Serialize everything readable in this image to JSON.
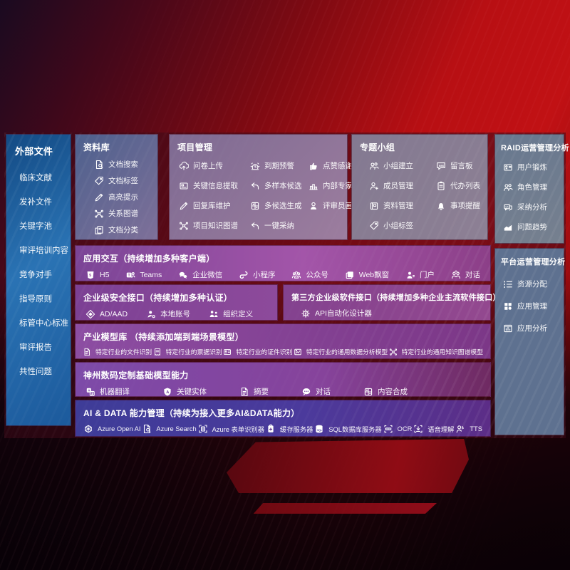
{
  "colors": {
    "background_red": "#b80f13",
    "sidebar_blue": "#1d63a9",
    "slate_panel": "#5e7190",
    "purple_row": "#8a4098",
    "indigo_row": "#4340a0",
    "gap_maroon": "#4a0c1a"
  },
  "sidebar": {
    "title": "外部文件",
    "items": [
      "临床文献",
      "发补文件",
      "关键字池",
      "审评培训内容",
      "竞争对手",
      "指导原则",
      "标管中心标准",
      "审评报告",
      "共性问题"
    ]
  },
  "panels": {
    "repository": {
      "title": "资料库",
      "items": [
        {
          "icon": "doc-search",
          "label": "文档搜索"
        },
        {
          "icon": "doc-tag",
          "label": "文档标签"
        },
        {
          "icon": "highlight-pen",
          "label": "高亮提示"
        },
        {
          "icon": "relation-graph",
          "label": "关系图谱"
        },
        {
          "icon": "doc-classify",
          "label": "文档分类"
        }
      ]
    },
    "project": {
      "title": "项目管理",
      "items": [
        {
          "icon": "cloud-upload",
          "label": "问卷上传"
        },
        {
          "icon": "due-alarm",
          "label": "到期预警"
        },
        {
          "icon": "thumbs-up",
          "label": "点赞感谢"
        },
        {
          "icon": "key-info-extract",
          "label": "关键信息提取"
        },
        {
          "icon": "multi-sample",
          "label": "多样本候选"
        },
        {
          "icon": "expert-ranking",
          "label": "内部专家排名"
        },
        {
          "icon": "reply-maintain",
          "label": "回复库维护"
        },
        {
          "icon": "multi-candidate",
          "label": "多候选生成"
        },
        {
          "icon": "reviewer-profile",
          "label": "评审员画像"
        },
        {
          "icon": "project-graph",
          "label": "项目知识图谱"
        },
        {
          "icon": "one-click-adopt",
          "label": "一键采纳"
        }
      ]
    },
    "groups": {
      "title": "专题小组",
      "items": [
        {
          "icon": "group-create",
          "label": "小组建立"
        },
        {
          "icon": "bbs-board",
          "label": "留言板"
        },
        {
          "icon": "member-manage",
          "label": "成员管理"
        },
        {
          "icon": "todo-list",
          "label": "代办列表"
        },
        {
          "icon": "material-manage",
          "label": "资料管理"
        },
        {
          "icon": "event-reminder",
          "label": "事项提醒"
        },
        {
          "icon": "group-tag",
          "label": "小组标签"
        }
      ]
    },
    "raid": {
      "title": "RAID运营管理分析",
      "items": [
        {
          "icon": "user-badge",
          "label": "用户锻炼"
        },
        {
          "icon": "role-manage",
          "label": "角色管理"
        },
        {
          "icon": "adoption-analysis",
          "label": "采纳分析"
        },
        {
          "icon": "issue-trend",
          "label": "问题趋势"
        }
      ]
    },
    "platform": {
      "title": "平台运营管理分析",
      "items": [
        {
          "icon": "resource-alloc",
          "label": "资源分配"
        },
        {
          "icon": "app-manage",
          "label": "应用管理"
        },
        {
          "icon": "app-analysis",
          "label": "应用分析"
        }
      ]
    },
    "interaction": {
      "title": "应用交互（持续增加多种客户端）",
      "items": [
        {
          "icon": "h5",
          "label": "H5"
        },
        {
          "icon": "teams",
          "label": "Teams"
        },
        {
          "icon": "wechat-work",
          "label": "企业微信"
        },
        {
          "icon": "mini-program",
          "label": "小程序"
        },
        {
          "icon": "official-account",
          "label": "公众号"
        },
        {
          "icon": "web-widget",
          "label": "Web飘窗"
        },
        {
          "icon": "portal",
          "label": "门户"
        },
        {
          "icon": "dialog",
          "label": "对话"
        }
      ]
    },
    "security": {
      "title": "企业级安全接口（持续增加多种认证）",
      "items": [
        {
          "icon": "ad-aad",
          "label": "AD/AAD"
        },
        {
          "icon": "local-account",
          "label": "本地账号"
        },
        {
          "icon": "org-define",
          "label": "组织定义"
        }
      ]
    },
    "thirdparty": {
      "title": "第三方企业级软件接口（持续增加多种企业主流软件接口）",
      "items": [
        {
          "icon": "api-designer",
          "label": "API自动化设计器"
        }
      ]
    },
    "models": {
      "title": "产业模型库 （持续添加端到端场景模型）",
      "items": [
        {
          "icon": "file-recognition",
          "label": "特定行业的文件识别"
        },
        {
          "icon": "receipt-recognition",
          "label": "特定行业的票据识别"
        },
        {
          "icon": "id-recognition",
          "label": "特定行业的证件识别"
        },
        {
          "icon": "data-analysis-model",
          "label": "特定行业的通用数据分析模型"
        },
        {
          "icon": "knowledge-graph-model",
          "label": "特定行业的通用知识图谱模型"
        }
      ]
    },
    "foundation": {
      "title": "神州数码定制基础模型能力",
      "items": [
        {
          "icon": "machine-translation",
          "label": "机器翻译"
        },
        {
          "icon": "key-entity",
          "label": "关键实体"
        },
        {
          "icon": "summary",
          "label": "摘要"
        },
        {
          "icon": "chat",
          "label": "对话"
        },
        {
          "icon": "content-compose",
          "label": "内容合成"
        }
      ]
    },
    "aidata": {
      "title": "AI & DATA 能力管理（持续为接入更多AI&DATA能力）",
      "items": [
        {
          "icon": "azure-openai",
          "label": "Azure Open AI"
        },
        {
          "icon": "azure-search",
          "label": "Azure Search"
        },
        {
          "icon": "form-recognizer",
          "label": "Azure 表单识别器"
        },
        {
          "icon": "cache-server",
          "label": "缓存服务器"
        },
        {
          "icon": "sql-server",
          "label": "SQL数据库服务器"
        },
        {
          "icon": "ocr",
          "label": "OCR"
        },
        {
          "icon": "speech-understanding",
          "label": "语音理解"
        },
        {
          "icon": "tts",
          "label": "TTS"
        }
      ]
    }
  }
}
